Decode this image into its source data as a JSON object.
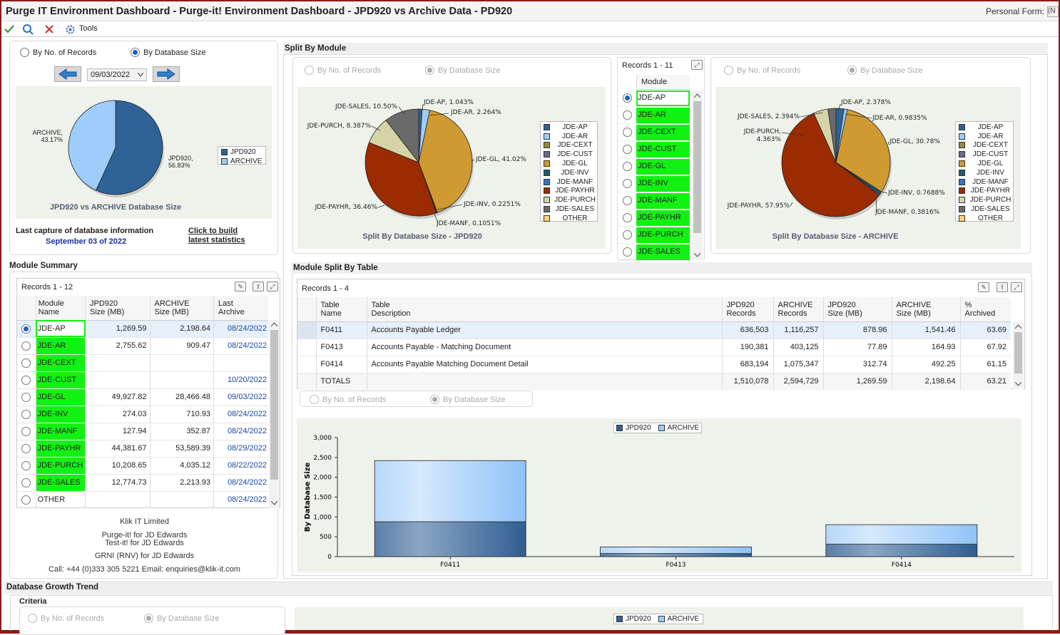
{
  "window": {
    "title": "Purge IT Environment Dashboard - Purge-it! Environment Dashboard  -  JPD920  vs  Archive Data - PD920",
    "personal_form_label": "Personal Form:",
    "personal_form_value": "(N"
  },
  "toolbar": {
    "tools_label": "Tools"
  },
  "colors": {
    "jpd": "#2f6296",
    "archive": "#9fcdfb",
    "green": "#12f212",
    "frame": "#8b1a1a"
  },
  "left_panel": {
    "radio_records": "By No. of Records",
    "radio_size": "By Database Size",
    "date": "09/03/2022",
    "pie": {
      "caption": "JPD920 vs ARCHIVE Database Size",
      "archive_label": "ARCHIVE,",
      "archive_pct": "43.17%",
      "jpd_label": "JPD920,",
      "jpd_pct": "56.83%",
      "legend": [
        "JPD920",
        "ARCHIVE"
      ]
    },
    "last_capture_label": "Last capture of database information",
    "last_capture_date": "September 03 of 2022",
    "build_link_1": "Click to build",
    "build_link_2": "latest statistics"
  },
  "split_module": {
    "title": "Split By Module",
    "left_radio_records": "By No. of Records",
    "left_radio_size": "By Database Size",
    "right_radio_records": "By No. of Records",
    "right_radio_size": "By Database Size",
    "jpd_caption": "Split By Database Size - JPD920",
    "archive_caption": "Split By Database Size - ARCHIVE",
    "legend": [
      "JDE-AP",
      "JDE-AR",
      "JDE-CEXT",
      "JDE-CUST",
      "JDE-GL",
      "JDE-INV",
      "JDE-MANF",
      "JDE-PAYHR",
      "JDE-PURCH",
      "JDE-SALES",
      "OTHER"
    ],
    "legend_colors": [
      "#2f6296",
      "#9fcdfb",
      "#8e8e3e",
      "#6a6a8e",
      "#d09a32",
      "#1c5e6e",
      "#2f78c8",
      "#9b2b00",
      "#d6d3a6",
      "#6a6a6a",
      "#ffd27a"
    ],
    "jpd_labels": [
      "JDE-AP, 1.043%",
      "JDE-AR, 2.264%",
      "JDE-SALES, 10.50%",
      "JDE-PURCH, 8.387%",
      "JDE-GL, 41.02%",
      "JDE-INV, 0.2251%",
      "JDE-MANF, 0.1051%",
      "JDE-PAYHR, 36.46%"
    ],
    "archive_labels": [
      "JDE-AP, 2.378%",
      "JDE-AR, 0.9835%",
      "JDE-SALES, 2.394%",
      "JDE-PURCH,",
      "4.363%",
      "JDE-GL, 30.78%",
      "JDE-INV, 0.7688%",
      "JDE-MANF, 0.3816%",
      "JDE-PAYHR, 57.95%"
    ],
    "records_label": "Records 1 - 11",
    "column": "Module",
    "modules": [
      "JDE-AP",
      "JDE-AR",
      "JDE-CEXT",
      "JDE-CUST",
      "JDE-GL",
      "JDE-INV",
      "JDE-MANF",
      "JDE-PAYHR",
      "JDE-PURCH",
      "JDE-SALES"
    ]
  },
  "module_summary": {
    "title": "Module Summary",
    "records_label": "Records 1 - 12",
    "headers": [
      [
        "Module",
        "Name"
      ],
      [
        "JPD920",
        "Size (MB)"
      ],
      [
        "ARCHIVE",
        "Size (MB)"
      ],
      [
        "Last",
        "Archive"
      ]
    ],
    "rows": [
      [
        "JDE-AP",
        "1,269.59",
        "2,198.64",
        "08/24/2022"
      ],
      [
        "JDE-AR",
        "2,755.62",
        "909.47",
        "08/24/2022"
      ],
      [
        "JDE-CEXT",
        "",
        "",
        ""
      ],
      [
        "JDE-CUST",
        "",
        "",
        "10/20/2022"
      ],
      [
        "JDE-GL",
        "49,927.82",
        "28,466.48",
        "09/03/2022"
      ],
      [
        "JDE-INV",
        "274.03",
        "710.93",
        "08/24/2022"
      ],
      [
        "JDE-MANF",
        "127.94",
        "352.87",
        "08/24/2022"
      ],
      [
        "JDE-PAYHR",
        "44,381.67",
        "53,589.39",
        "08/29/2022"
      ],
      [
        "JDE-PURCH",
        "10,208.65",
        "4,035.12",
        "08/22/2022"
      ],
      [
        "JDE-SALES",
        "12,774.73",
        "2,213.93",
        "08/24/2022"
      ],
      [
        "OTHER",
        "",
        "",
        "08/24/2022"
      ]
    ],
    "footer": [
      "Klik IT Limited",
      "Purge-it! for JD Edwards",
      "Test-it! for JD Edwards",
      "GRNI (RNV) for JD Edwards",
      "Call: +44 (0)333 305 5221 Email: enquiries@klik-it.com"
    ]
  },
  "table_split": {
    "title": "Module Split By Table",
    "records_label": "Records 1 - 4",
    "headers": [
      [
        "Table",
        "Name"
      ],
      [
        "Table",
        "Description"
      ],
      [
        "JPD920",
        "Records"
      ],
      [
        "ARCHIVE",
        "Records"
      ],
      [
        "JPD920",
        "Size (MB)"
      ],
      [
        "ARCHIVE",
        "Size (MB)"
      ],
      [
        "%",
        "Archived"
      ]
    ],
    "rows": [
      [
        "F0411",
        "Accounts Payable Ledger",
        "636,503",
        "1,116,257",
        "878.96",
        "1,541.46",
        "63.69"
      ],
      [
        "F0413",
        "Accounts Payable - Matching Document",
        "190,381",
        "403,125",
        "77.89",
        "164.93",
        "67.92"
      ],
      [
        "F0414",
        "Accounts Payable Matching Document Detail",
        "683,194",
        "1,075,347",
        "312.74",
        "492.25",
        "61.15"
      ],
      [
        "TOTALS",
        "",
        "1,510,078",
        "2,594,729",
        "1,269.59",
        "2,198.64",
        "63.21"
      ]
    ],
    "radio_records": "By No. of Records",
    "radio_size": "By Database Size"
  },
  "chart_data": [
    {
      "type": "pie",
      "title": "JPD920 vs ARCHIVE Database Size",
      "categories": [
        "JPD920",
        "ARCHIVE"
      ],
      "values": [
        56.83,
        43.17
      ]
    },
    {
      "type": "pie",
      "title": "Split By Database Size - JPD920",
      "categories": [
        "JDE-AP",
        "JDE-AR",
        "JDE-GL",
        "JDE-INV",
        "JDE-MANF",
        "JDE-PAYHR",
        "JDE-PURCH",
        "JDE-SALES"
      ],
      "values": [
        1.043,
        2.264,
        41.02,
        0.2251,
        0.1051,
        36.46,
        8.387,
        10.5
      ]
    },
    {
      "type": "pie",
      "title": "Split By Database Size - ARCHIVE",
      "categories": [
        "JDE-AP",
        "JDE-AR",
        "JDE-GL",
        "JDE-INV",
        "JDE-MANF",
        "JDE-PAYHR",
        "JDE-PURCH",
        "JDE-SALES"
      ],
      "values": [
        2.378,
        0.9835,
        30.78,
        0.7688,
        0.3816,
        57.95,
        4.363,
        2.394
      ]
    },
    {
      "type": "bar",
      "stacked": true,
      "categories": [
        "F0411",
        "F0413",
        "F0414"
      ],
      "series": [
        {
          "name": "JPD920",
          "values": [
            878.96,
            77.89,
            312.74
          ]
        },
        {
          "name": "ARCHIVE",
          "values": [
            1541.46,
            164.93,
            492.25
          ]
        }
      ],
      "ylabel": "By Database Size",
      "ylim": [
        0,
        3000
      ],
      "yticks": [
        "0",
        "500",
        "1,000",
        "1,500",
        "2,000",
        "2,500",
        "3,000"
      ],
      "legend": "top"
    }
  ],
  "growth": {
    "title": "Database Growth Trend",
    "criteria": "Criteria",
    "radio_records": "By No. of Records",
    "radio_size": "By Database Size",
    "legend": [
      "JPD920",
      "ARCHIVE"
    ]
  }
}
